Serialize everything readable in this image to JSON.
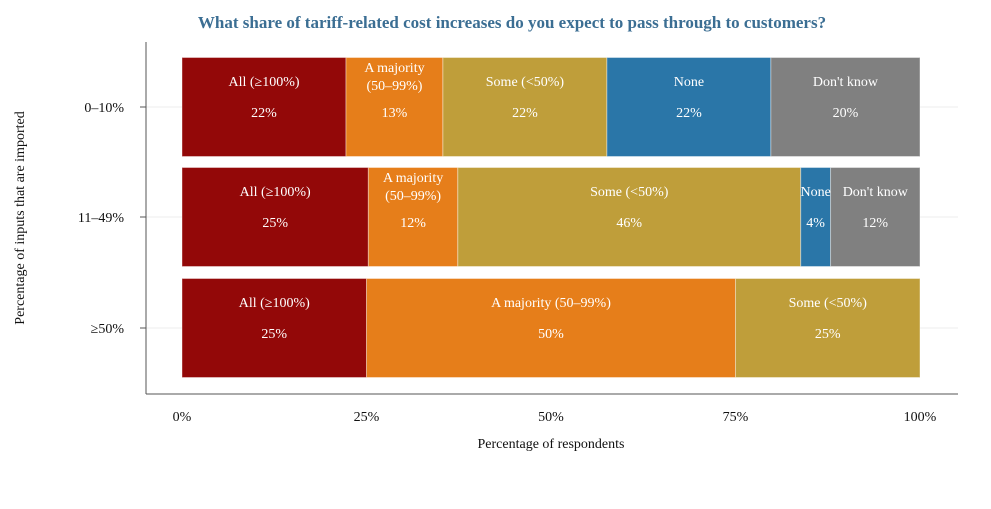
{
  "chart_data": {
    "type": "bar",
    "orientation": "horizontal",
    "stacked": true,
    "title": "What share of tariff-related cost increases do you expect to pass through to customers?",
    "xlabel": "Percentage of respondents",
    "ylabel": "Percentage of inputs that are imported",
    "xlim": [
      0,
      100
    ],
    "xticks": [
      "0%",
      "25%",
      "50%",
      "75%",
      "100%"
    ],
    "grid": true,
    "categories": [
      "0–10%",
      "11–49%",
      "≥50%"
    ],
    "rows": [
      {
        "category": "0–10%",
        "segments": [
          {
            "label": "All (≥100%)",
            "value": 22,
            "value_label": "22%",
            "color": "#930808"
          },
          {
            "label": "A majority\n(50–99%)",
            "value": 13,
            "value_label": "13%",
            "color": "#e67e1a"
          },
          {
            "label": "Some (<50%)",
            "value": 22,
            "value_label": "22%",
            "color": "#bf9e3a"
          },
          {
            "label": "None",
            "value": 22,
            "value_label": "22%",
            "color": "#2a76a8"
          },
          {
            "label": "Don't know",
            "value": 20,
            "value_label": "20%",
            "color": "#808080"
          }
        ]
      },
      {
        "category": "11–49%",
        "segments": [
          {
            "label": "All (≥100%)",
            "value": 25,
            "value_label": "25%",
            "color": "#930808"
          },
          {
            "label": "A majority\n(50–99%)",
            "value": 12,
            "value_label": "12%",
            "color": "#e67e1a"
          },
          {
            "label": "Some (<50%)",
            "value": 46,
            "value_label": "46%",
            "color": "#bf9e3a"
          },
          {
            "label": "None",
            "value": 4,
            "value_label": "4%",
            "color": "#2a76a8"
          },
          {
            "label": "Don't know",
            "value": 12,
            "value_label": "12%",
            "color": "#808080"
          }
        ]
      },
      {
        "category": "≥50%",
        "segments": [
          {
            "label": "All (≥100%)",
            "value": 25,
            "value_label": "25%",
            "color": "#930808"
          },
          {
            "label": "A majority (50–99%)",
            "value": 50,
            "value_label": "50%",
            "color": "#e67e1a"
          },
          {
            "label": "Some (<50%)",
            "value": 25,
            "value_label": "25%",
            "color": "#bf9e3a"
          }
        ]
      }
    ]
  }
}
